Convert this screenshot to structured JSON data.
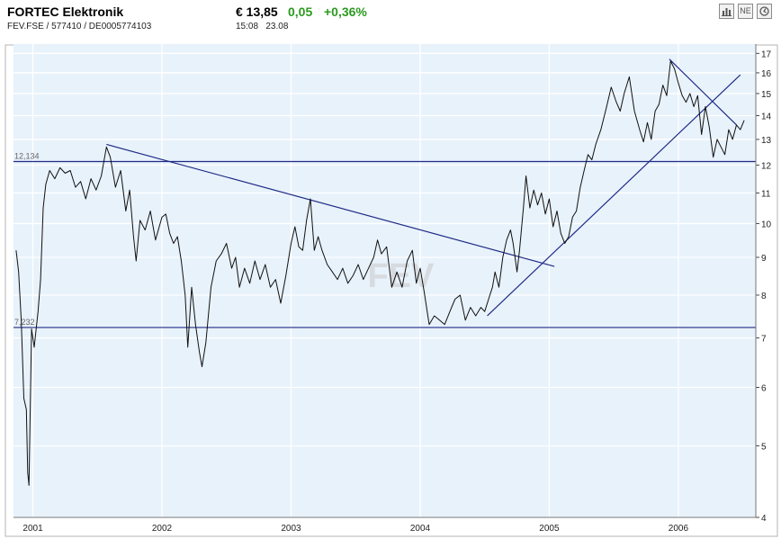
{
  "header": {
    "name": "FORTEC Elektronik",
    "ids": "FEV.FSE  /  577410  /  DE0005774103",
    "price": "€ 13,85",
    "change": "0,05",
    "change_pct": "+0,36%",
    "time": "15:08",
    "date": "23.08",
    "icons": [
      "bar-chart-icon",
      "news-icon",
      "refresh-icon"
    ],
    "news_label": "NE"
  },
  "chart_data": {
    "type": "line",
    "title": "",
    "xlabel": "",
    "ylabel": "",
    "watermark": "FEV",
    "yscale": "log",
    "ylim": [
      4,
      17.5
    ],
    "yticks": [
      4,
      5,
      6,
      7,
      8,
      9,
      10,
      11,
      12,
      13,
      14,
      15,
      16,
      17
    ],
    "xlim": [
      2000.85,
      2006.6
    ],
    "xticks": [
      {
        "label": "2001",
        "x": 2001.0
      },
      {
        "label": "2002",
        "x": 2002.0
      },
      {
        "label": "2003",
        "x": 2003.0
      },
      {
        "label": "2004",
        "x": 2004.0
      },
      {
        "label": "2005",
        "x": 2005.0
      },
      {
        "label": "2006",
        "x": 2006.0
      }
    ],
    "grid": true,
    "line_color": "#111111",
    "trend_color": "#1f2b86",
    "background": "#e8f2fb",
    "levels": [
      {
        "label": "12,134",
        "value": 12.134
      },
      {
        "label": "7,232",
        "value": 7.232
      }
    ],
    "trendlines": [
      {
        "x0": 2001.57,
        "y0": 12.8,
        "x1": 2005.04,
        "y1": 8.75
      },
      {
        "x0": 2004.52,
        "y0": 7.5,
        "x1": 2006.48,
        "y1": 15.9
      },
      {
        "x0": 2005.93,
        "y0": 16.7,
        "x1": 2006.45,
        "y1": 13.6
      }
    ],
    "series": [
      {
        "values": [
          [
            2000.87,
            9.2
          ],
          [
            2000.89,
            8.6
          ],
          [
            2000.91,
            7.4
          ],
          [
            2000.93,
            5.8
          ],
          [
            2000.95,
            5.6
          ],
          [
            2000.96,
            4.6
          ],
          [
            2000.97,
            4.42
          ],
          [
            2000.99,
            7.2
          ],
          [
            2001.01,
            6.8
          ],
          [
            2001.04,
            7.6
          ],
          [
            2001.06,
            8.4
          ],
          [
            2001.08,
            10.5
          ],
          [
            2001.1,
            11.3
          ],
          [
            2001.13,
            11.8
          ],
          [
            2001.17,
            11.5
          ],
          [
            2001.21,
            11.9
          ],
          [
            2001.25,
            11.7
          ],
          [
            2001.29,
            11.8
          ],
          [
            2001.33,
            11.2
          ],
          [
            2001.37,
            11.4
          ],
          [
            2001.41,
            10.8
          ],
          [
            2001.45,
            11.5
          ],
          [
            2001.49,
            11.1
          ],
          [
            2001.53,
            11.6
          ],
          [
            2001.57,
            12.7
          ],
          [
            2001.6,
            12.3
          ],
          [
            2001.64,
            11.2
          ],
          [
            2001.68,
            11.8
          ],
          [
            2001.72,
            10.4
          ],
          [
            2001.75,
            11.1
          ],
          [
            2001.78,
            9.6
          ],
          [
            2001.8,
            8.9
          ],
          [
            2001.83,
            10.1
          ],
          [
            2001.87,
            9.8
          ],
          [
            2001.91,
            10.4
          ],
          [
            2001.95,
            9.5
          ],
          [
            2002.0,
            10.2
          ],
          [
            2002.03,
            10.3
          ],
          [
            2002.06,
            9.7
          ],
          [
            2002.09,
            9.4
          ],
          [
            2002.12,
            9.6
          ],
          [
            2002.15,
            8.9
          ],
          [
            2002.18,
            8.0
          ],
          [
            2002.2,
            6.8
          ],
          [
            2002.23,
            8.2
          ],
          [
            2002.26,
            7.3
          ],
          [
            2002.29,
            6.7
          ],
          [
            2002.31,
            6.4
          ],
          [
            2002.34,
            6.9
          ],
          [
            2002.38,
            8.2
          ],
          [
            2002.42,
            8.9
          ],
          [
            2002.46,
            9.1
          ],
          [
            2002.5,
            9.4
          ],
          [
            2002.54,
            8.7
          ],
          [
            2002.57,
            9.0
          ],
          [
            2002.6,
            8.2
          ],
          [
            2002.64,
            8.7
          ],
          [
            2002.68,
            8.3
          ],
          [
            2002.72,
            8.9
          ],
          [
            2002.76,
            8.4
          ],
          [
            2002.8,
            8.8
          ],
          [
            2002.84,
            8.2
          ],
          [
            2002.88,
            8.4
          ],
          [
            2002.92,
            7.8
          ],
          [
            2002.96,
            8.5
          ],
          [
            2003.0,
            9.4
          ],
          [
            2003.03,
            9.9
          ],
          [
            2003.06,
            9.3
          ],
          [
            2003.09,
            9.2
          ],
          [
            2003.12,
            10.1
          ],
          [
            2003.15,
            10.8
          ],
          [
            2003.18,
            9.2
          ],
          [
            2003.21,
            9.6
          ],
          [
            2003.24,
            9.2
          ],
          [
            2003.28,
            8.8
          ],
          [
            2003.32,
            8.6
          ],
          [
            2003.36,
            8.4
          ],
          [
            2003.4,
            8.7
          ],
          [
            2003.44,
            8.3
          ],
          [
            2003.48,
            8.5
          ],
          [
            2003.52,
            8.8
          ],
          [
            2003.56,
            8.4
          ],
          [
            2003.6,
            8.7
          ],
          [
            2003.64,
            9.0
          ],
          [
            2003.67,
            9.5
          ],
          [
            2003.7,
            9.1
          ],
          [
            2003.74,
            9.3
          ],
          [
            2003.78,
            8.2
          ],
          [
            2003.82,
            8.6
          ],
          [
            2003.86,
            8.2
          ],
          [
            2003.9,
            8.9
          ],
          [
            2003.94,
            9.2
          ],
          [
            2003.97,
            8.3
          ],
          [
            2004.0,
            8.7
          ],
          [
            2004.03,
            8.1
          ],
          [
            2004.07,
            7.3
          ],
          [
            2004.11,
            7.5
          ],
          [
            2004.15,
            7.4
          ],
          [
            2004.19,
            7.3
          ],
          [
            2004.23,
            7.6
          ],
          [
            2004.27,
            7.9
          ],
          [
            2004.31,
            8.0
          ],
          [
            2004.35,
            7.4
          ],
          [
            2004.39,
            7.7
          ],
          [
            2004.43,
            7.5
          ],
          [
            2004.47,
            7.7
          ],
          [
            2004.5,
            7.6
          ],
          [
            2004.53,
            7.9
          ],
          [
            2004.56,
            8.2
          ],
          [
            2004.58,
            8.6
          ],
          [
            2004.61,
            8.2
          ],
          [
            2004.64,
            9.0
          ],
          [
            2004.67,
            9.5
          ],
          [
            2004.7,
            9.8
          ],
          [
            2004.72,
            9.4
          ],
          [
            2004.75,
            8.6
          ],
          [
            2004.77,
            9.2
          ],
          [
            2004.8,
            10.5
          ],
          [
            2004.82,
            11.6
          ],
          [
            2004.85,
            10.5
          ],
          [
            2004.88,
            11.1
          ],
          [
            2004.91,
            10.6
          ],
          [
            2004.94,
            11.0
          ],
          [
            2004.97,
            10.3
          ],
          [
            2005.0,
            10.8
          ],
          [
            2005.03,
            9.9
          ],
          [
            2005.06,
            10.4
          ],
          [
            2005.09,
            9.7
          ],
          [
            2005.12,
            9.4
          ],
          [
            2005.15,
            9.6
          ],
          [
            2005.18,
            10.2
          ],
          [
            2005.21,
            10.4
          ],
          [
            2005.24,
            11.2
          ],
          [
            2005.27,
            11.8
          ],
          [
            2005.3,
            12.4
          ],
          [
            2005.33,
            12.2
          ],
          [
            2005.36,
            12.8
          ],
          [
            2005.4,
            13.4
          ],
          [
            2005.44,
            14.3
          ],
          [
            2005.48,
            15.3
          ],
          [
            2005.52,
            14.6
          ],
          [
            2005.55,
            14.2
          ],
          [
            2005.58,
            15.0
          ],
          [
            2005.62,
            15.8
          ],
          [
            2005.66,
            14.2
          ],
          [
            2005.7,
            13.4
          ],
          [
            2005.73,
            12.9
          ],
          [
            2005.76,
            13.7
          ],
          [
            2005.79,
            13.0
          ],
          [
            2005.82,
            14.2
          ],
          [
            2005.85,
            14.5
          ],
          [
            2005.88,
            15.4
          ],
          [
            2005.91,
            14.9
          ],
          [
            2005.94,
            16.6
          ],
          [
            2005.97,
            16.2
          ],
          [
            2006.0,
            15.5
          ],
          [
            2006.03,
            14.9
          ],
          [
            2006.06,
            14.6
          ],
          [
            2006.09,
            15.0
          ],
          [
            2006.12,
            14.4
          ],
          [
            2006.15,
            14.9
          ],
          [
            2006.18,
            13.2
          ],
          [
            2006.21,
            14.4
          ],
          [
            2006.24,
            13.5
          ],
          [
            2006.27,
            12.3
          ],
          [
            2006.3,
            13.0
          ],
          [
            2006.33,
            12.7
          ],
          [
            2006.36,
            12.4
          ],
          [
            2006.39,
            13.4
          ],
          [
            2006.42,
            13.0
          ],
          [
            2006.45,
            13.6
          ],
          [
            2006.48,
            13.4
          ],
          [
            2006.51,
            13.8
          ]
        ]
      }
    ]
  }
}
